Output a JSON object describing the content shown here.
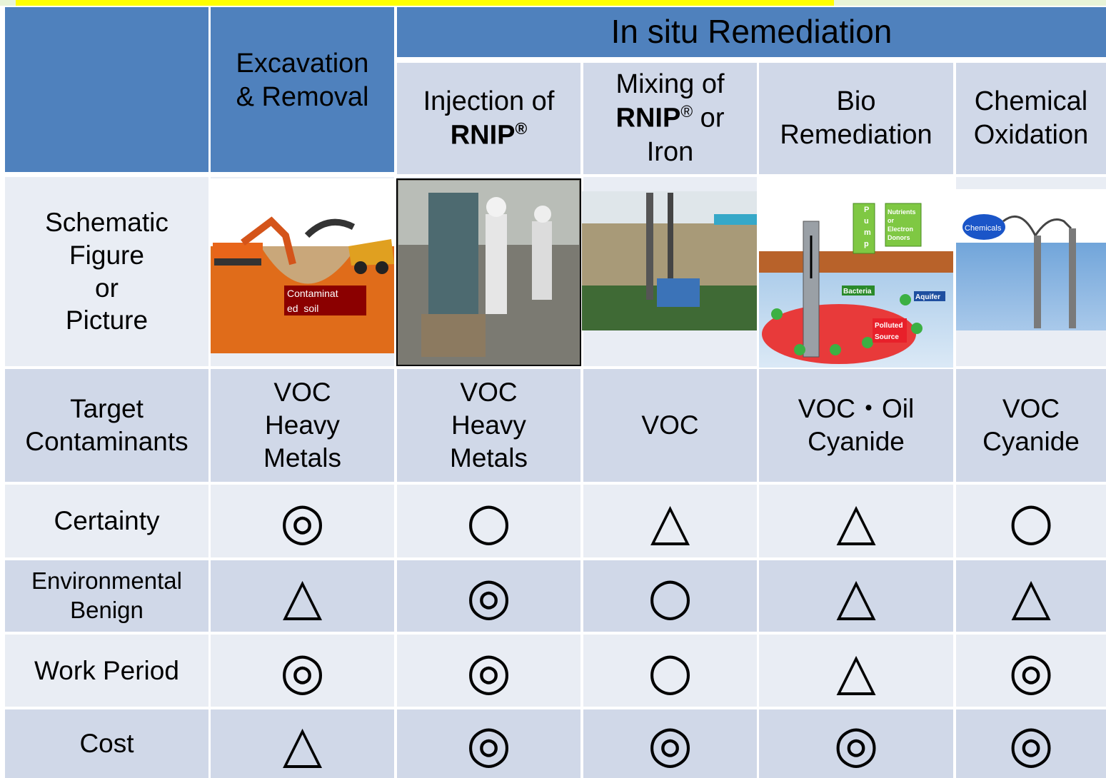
{
  "header": {
    "group_title": "In situ Remediation",
    "columns": [
      [
        [
          {
            "text": "Excavation"
          }
        ],
        [
          {
            "text": "& Removal"
          }
        ]
      ],
      [
        [
          {
            "text": "Injection of"
          }
        ],
        [
          {
            "text": "RNIP",
            "bold": true
          },
          {
            "text": "®",
            "bold": true,
            "sup": true
          }
        ]
      ],
      [
        [
          {
            "text": "Mixing of"
          }
        ],
        [
          {
            "text": "RNIP",
            "bold": true
          },
          {
            "text": "®",
            "sup": true
          },
          {
            "text": " or"
          }
        ],
        [
          {
            "text": "Iron"
          }
        ]
      ],
      [
        [
          {
            "text": "Bio"
          }
        ],
        [
          {
            "text": "Remediation"
          }
        ]
      ],
      [
        [
          {
            "text": "Chemical"
          }
        ],
        [
          {
            "text": "Oxidation"
          }
        ]
      ]
    ]
  },
  "picture_row": {
    "label": [
      "Schematic",
      "Figure",
      "or",
      "Picture"
    ],
    "excavation_label": [
      "Contaminat",
      "ed  soil"
    ],
    "bio_labels": {
      "pump": [
        "P",
        "u",
        "m",
        "p"
      ],
      "nutrients": [
        "Nutrients",
        "or",
        "Electron",
        "Donors"
      ],
      "bacteria": "Bacteria",
      "aquifer": "Aquifer",
      "polluted": [
        "Polluted",
        "Source"
      ]
    },
    "chemical_label": "Chemicals"
  },
  "rows": [
    {
      "label": [
        "Target",
        "Contaminants"
      ],
      "cells": [
        [
          "VOC",
          "Heavy",
          "Metals"
        ],
        [
          "VOC",
          "Heavy",
          "Metals"
        ],
        [
          "VOC"
        ],
        [
          "VOC・Oil",
          "Cyanide"
        ],
        [
          "VOC",
          "Cyanide"
        ]
      ]
    },
    {
      "label": [
        "Certainty"
      ],
      "cells": [
        [
          "◎"
        ],
        [
          "○"
        ],
        [
          "△"
        ],
        [
          "△"
        ],
        [
          "○"
        ]
      ]
    },
    {
      "label": [
        "Environmental",
        "Benign"
      ],
      "cells": [
        [
          "△"
        ],
        [
          "◎"
        ],
        [
          "○"
        ],
        [
          "△"
        ],
        [
          "△"
        ]
      ]
    },
    {
      "label": [
        "Work Period"
      ],
      "cells": [
        [
          "◎"
        ],
        [
          "◎"
        ],
        [
          "○"
        ],
        [
          "△"
        ],
        [
          "◎"
        ]
      ]
    },
    {
      "label": [
        "Cost"
      ],
      "cells": [
        [
          "△"
        ],
        [
          "◎"
        ],
        [
          "◎"
        ],
        [
          "◎"
        ],
        [
          "◎"
        ]
      ]
    }
  ]
}
